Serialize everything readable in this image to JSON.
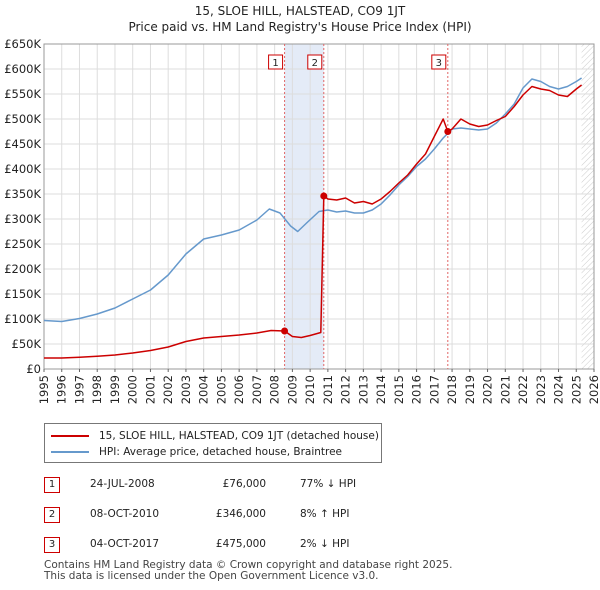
{
  "title": {
    "line1": "15, SLOE HILL, HALSTEAD, CO9 1JT",
    "line2": "Price paid vs. HM Land Registry's House Price Index (HPI)"
  },
  "colors": {
    "property": "#cc0000",
    "hpi": "#6699cc",
    "shade": "#dde6f5",
    "grid": "#dddddd"
  },
  "chart_data": {
    "type": "line",
    "title": "Price paid vs. HM Land Registry's House Price Index (HPI)",
    "xlabel": "",
    "ylabel": "",
    "xlim": [
      1995,
      2026
    ],
    "ylim": [
      0,
      650000
    ],
    "x_ticks": [
      "1995",
      "1996",
      "1997",
      "1998",
      "1999",
      "2000",
      "2001",
      "2002",
      "2003",
      "2004",
      "2005",
      "2006",
      "2007",
      "2008",
      "2009",
      "2010",
      "2011",
      "2012",
      "2013",
      "2014",
      "2015",
      "2016",
      "2017",
      "2018",
      "2019",
      "2020",
      "2021",
      "2022",
      "2023",
      "2024",
      "2025",
      "2026"
    ],
    "y_ticks": [
      {
        "value": 0,
        "label": "£0"
      },
      {
        "value": 50000,
        "label": "£50K"
      },
      {
        "value": 100000,
        "label": "£100K"
      },
      {
        "value": 150000,
        "label": "£150K"
      },
      {
        "value": 200000,
        "label": "£200K"
      },
      {
        "value": 250000,
        "label": "£250K"
      },
      {
        "value": 300000,
        "label": "£300K"
      },
      {
        "value": 350000,
        "label": "£350K"
      },
      {
        "value": 400000,
        "label": "£400K"
      },
      {
        "value": 450000,
        "label": "£450K"
      },
      {
        "value": 500000,
        "label": "£500K"
      },
      {
        "value": 550000,
        "label": "£550K"
      },
      {
        "value": 600000,
        "label": "£600K"
      },
      {
        "value": 650000,
        "label": "£650K"
      }
    ],
    "grid": true,
    "series": [
      {
        "name": "15, SLOE HILL, HALSTEAD, CO9 1JT (detached house)",
        "color": "#cc0000",
        "points": [
          [
            1995.0,
            22000
          ],
          [
            1996.0,
            22000
          ],
          [
            1997.0,
            23500
          ],
          [
            1998.0,
            25500
          ],
          [
            1999.0,
            28000
          ],
          [
            2000.0,
            32000
          ],
          [
            2001.0,
            37000
          ],
          [
            2002.0,
            44000
          ],
          [
            2003.0,
            55000
          ],
          [
            2004.0,
            62000
          ],
          [
            2005.0,
            65000
          ],
          [
            2006.0,
            68000
          ],
          [
            2007.0,
            72000
          ],
          [
            2007.8,
            77000
          ],
          [
            2008.56,
            76000
          ],
          [
            2009.0,
            65000
          ],
          [
            2009.5,
            63000
          ],
          [
            2010.0,
            67000
          ],
          [
            2010.6,
            73000
          ],
          [
            2010.77,
            346000
          ],
          [
            2011.0,
            340000
          ],
          [
            2011.5,
            338000
          ],
          [
            2012.0,
            342000
          ],
          [
            2012.5,
            332000
          ],
          [
            2013.0,
            335000
          ],
          [
            2013.5,
            330000
          ],
          [
            2014.0,
            340000
          ],
          [
            2014.5,
            355000
          ],
          [
            2015.0,
            372000
          ],
          [
            2015.5,
            388000
          ],
          [
            2016.0,
            410000
          ],
          [
            2016.5,
            430000
          ],
          [
            2017.0,
            465000
          ],
          [
            2017.5,
            500000
          ],
          [
            2017.76,
            475000
          ],
          [
            2018.0,
            480000
          ],
          [
            2018.5,
            500000
          ],
          [
            2019.0,
            490000
          ],
          [
            2019.5,
            485000
          ],
          [
            2020.0,
            488000
          ],
          [
            2020.5,
            497000
          ],
          [
            2021.0,
            505000
          ],
          [
            2021.5,
            525000
          ],
          [
            2022.0,
            548000
          ],
          [
            2022.5,
            565000
          ],
          [
            2023.0,
            560000
          ],
          [
            2023.5,
            557000
          ],
          [
            2024.0,
            548000
          ],
          [
            2024.5,
            545000
          ],
          [
            2025.0,
            560000
          ],
          [
            2025.3,
            568000
          ]
        ]
      },
      {
        "name": "HPI: Average price, detached house, Braintree",
        "color": "#6699cc",
        "points": [
          [
            1995.0,
            97000
          ],
          [
            1996.0,
            95000
          ],
          [
            1997.0,
            101000
          ],
          [
            1998.0,
            110000
          ],
          [
            1999.0,
            122000
          ],
          [
            2000.0,
            140000
          ],
          [
            2001.0,
            158000
          ],
          [
            2002.0,
            188000
          ],
          [
            2003.0,
            230000
          ],
          [
            2004.0,
            260000
          ],
          [
            2005.0,
            268000
          ],
          [
            2006.0,
            278000
          ],
          [
            2007.0,
            298000
          ],
          [
            2007.7,
            320000
          ],
          [
            2008.3,
            312000
          ],
          [
            2008.9,
            286000
          ],
          [
            2009.3,
            275000
          ],
          [
            2009.8,
            292000
          ],
          [
            2010.5,
            315000
          ],
          [
            2011.0,
            318000
          ],
          [
            2011.5,
            314000
          ],
          [
            2012.0,
            316000
          ],
          [
            2012.5,
            312000
          ],
          [
            2013.0,
            312000
          ],
          [
            2013.5,
            318000
          ],
          [
            2014.0,
            330000
          ],
          [
            2014.5,
            348000
          ],
          [
            2015.0,
            368000
          ],
          [
            2015.5,
            385000
          ],
          [
            2016.0,
            405000
          ],
          [
            2016.5,
            420000
          ],
          [
            2017.0,
            440000
          ],
          [
            2017.5,
            462000
          ],
          [
            2018.0,
            480000
          ],
          [
            2018.5,
            482000
          ],
          [
            2019.0,
            480000
          ],
          [
            2019.5,
            478000
          ],
          [
            2020.0,
            480000
          ],
          [
            2020.5,
            492000
          ],
          [
            2021.0,
            510000
          ],
          [
            2021.5,
            530000
          ],
          [
            2022.0,
            562000
          ],
          [
            2022.5,
            580000
          ],
          [
            2023.0,
            575000
          ],
          [
            2023.5,
            565000
          ],
          [
            2024.0,
            560000
          ],
          [
            2024.5,
            565000
          ],
          [
            2025.0,
            575000
          ],
          [
            2025.3,
            582000
          ]
        ]
      }
    ],
    "future_shade_from": 2025.3,
    "sales": [
      {
        "label": "1",
        "x": 2008.56,
        "price": 76000,
        "shade_to": 2010.77
      },
      {
        "label": "2",
        "x": 2010.77,
        "price": 346000
      },
      {
        "label": "3",
        "x": 2017.76,
        "price": 475000
      }
    ]
  },
  "legend": {
    "property": "15, SLOE HILL, HALSTEAD, CO9 1JT (detached house)",
    "hpi": "HPI: Average price, detached house, Braintree"
  },
  "transactions": [
    {
      "num": "1",
      "date": "24-JUL-2008",
      "price": "£76,000",
      "hpi": "77% ↓ HPI"
    },
    {
      "num": "2",
      "date": "08-OCT-2010",
      "price": "£346,000",
      "hpi": "8% ↑ HPI"
    },
    {
      "num": "3",
      "date": "04-OCT-2017",
      "price": "£475,000",
      "hpi": "2% ↓ HPI"
    }
  ],
  "footer": {
    "line1": "Contains HM Land Registry data © Crown copyright and database right 2025.",
    "line2": "This data is licensed under the Open Government Licence v3.0."
  }
}
